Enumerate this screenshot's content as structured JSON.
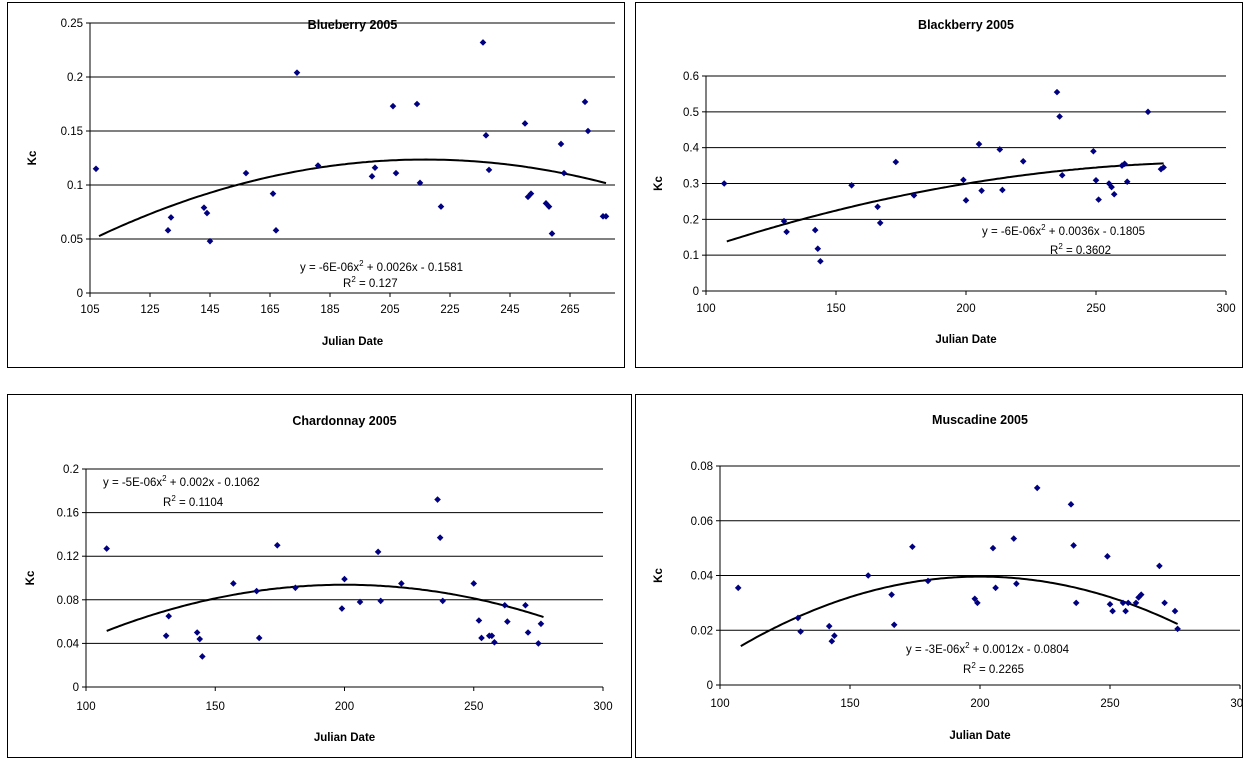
{
  "chart_data": [
    {
      "type": "scatter",
      "title": "Blueberry 2005",
      "xlabel": "Julian Date",
      "ylabel": "Kc",
      "xlim": [
        105,
        280
      ],
      "ylim": [
        0,
        0.25
      ],
      "xticks": [
        "105",
        "125",
        "145",
        "165",
        "185",
        "205",
        "225",
        "245",
        "265"
      ],
      "yticks": [
        "0",
        "0.05",
        "0.1",
        "0.15",
        "0.2",
        "0.25"
      ],
      "grid": "horizontal",
      "series": [
        {
          "x": [
            107,
            131,
            132,
            143,
            144,
            145,
            157,
            166,
            167,
            174,
            181,
            199,
            200,
            206,
            207,
            214,
            215,
            222,
            236,
            237,
            238,
            250,
            251,
            252,
            257,
            258,
            259,
            262,
            263,
            270,
            271,
            276,
            277
          ],
          "y": [
            0.115,
            0.058,
            0.07,
            0.079,
            0.074,
            0.048,
            0.111,
            0.092,
            0.058,
            0.204,
            0.118,
            0.108,
            0.116,
            0.173,
            0.111,
            0.175,
            0.102,
            0.08,
            0.232,
            0.146,
            0.114,
            0.157,
            0.089,
            0.092,
            0.083,
            0.08,
            0.055,
            0.138,
            0.111,
            0.177,
            0.15,
            0.071,
            0.071
          ]
        }
      ],
      "trendline": {
        "type": "poly2",
        "x_range": [
          108,
          277
        ]
      },
      "equation": "y = -6E-06x",
      "equation_sup": "2",
      "equation_rest": " + 0.0026x - 0.1581",
      "r2_label": "R",
      "r2_sup": "2",
      "r2_value": " = 0.127"
    },
    {
      "type": "scatter",
      "title": "Blackberry 2005",
      "xlabel": "Julian Date",
      "ylabel": "Kc",
      "xlim": [
        100,
        300
      ],
      "ylim": [
        0,
        0.6
      ],
      "xticks": [
        "100",
        "150",
        "200",
        "250",
        "300"
      ],
      "yticks": [
        "0",
        "0.1",
        "0.2",
        "0.3",
        "0.4",
        "0.5",
        "0.6"
      ],
      "grid": "horizontal",
      "series": [
        {
          "x": [
            107,
            130,
            131,
            142,
            143,
            144,
            156,
            166,
            167,
            173,
            180,
            199,
            200,
            205,
            206,
            213,
            214,
            222,
            235,
            236,
            237,
            249,
            250,
            251,
            255,
            256,
            257,
            260,
            261,
            262,
            270,
            275,
            276
          ],
          "y": [
            0.3,
            0.195,
            0.165,
            0.17,
            0.118,
            0.083,
            0.295,
            0.235,
            0.19,
            0.36,
            0.267,
            0.31,
            0.253,
            0.41,
            0.28,
            0.395,
            0.282,
            0.362,
            0.555,
            0.487,
            0.323,
            0.39,
            0.309,
            0.255,
            0.3,
            0.29,
            0.27,
            0.35,
            0.355,
            0.305,
            0.5,
            0.34,
            0.345
          ]
        }
      ],
      "trendline": {
        "type": "poly2",
        "x_range": [
          108,
          276
        ]
      },
      "equation": "y = -6E-06x",
      "equation_sup": "2",
      "equation_rest": " + 0.0036x - 0.1805",
      "r2_label": "R",
      "r2_sup": "2",
      "r2_value": " = 0.3602"
    },
    {
      "type": "scatter",
      "title": "Chardonnay 2005",
      "xlabel": "Julian Date",
      "ylabel": "Kc",
      "xlim": [
        100,
        300
      ],
      "ylim": [
        0,
        0.2
      ],
      "xticks": [
        "100",
        "150",
        "200",
        "250",
        "300"
      ],
      "yticks": [
        "0",
        "0.04",
        "0.08",
        "0.12",
        "0.16",
        "0.2"
      ],
      "grid": "horizontal",
      "series": [
        {
          "x": [
            108,
            131,
            132,
            143,
            144,
            145,
            157,
            166,
            167,
            174,
            181,
            199,
            200,
            206,
            213,
            214,
            222,
            236,
            237,
            238,
            250,
            252,
            253,
            256,
            257,
            258,
            262,
            263,
            270,
            271,
            275,
            276
          ],
          "y": [
            0.127,
            0.047,
            0.065,
            0.05,
            0.044,
            0.028,
            0.095,
            0.088,
            0.045,
            0.13,
            0.091,
            0.072,
            0.099,
            0.078,
            0.124,
            0.079,
            0.095,
            0.172,
            0.137,
            0.079,
            0.095,
            0.061,
            0.045,
            0.047,
            0.047,
            0.041,
            0.075,
            0.06,
            0.075,
            0.05,
            0.04,
            0.058
          ]
        }
      ],
      "trendline": {
        "type": "poly2",
        "x_range": [
          108,
          277
        ]
      },
      "equation": "y = -5E-06x",
      "equation_sup": "2",
      "equation_rest": " + 0.002x - 0.1062",
      "r2_label": "R",
      "r2_sup": "2",
      "r2_value": " = 0.1104"
    },
    {
      "type": "scatter",
      "title": "Muscadine 2005",
      "xlabel": "Julian Date",
      "ylabel": "Kc",
      "xlim": [
        100,
        300
      ],
      "ylim": [
        0,
        0.08
      ],
      "xticks": [
        "100",
        "150",
        "200",
        "250",
        "300"
      ],
      "yticks": [
        "0",
        "0.02",
        "0.04",
        "0.06",
        "0.08"
      ],
      "grid": "horizontal",
      "series": [
        {
          "x": [
            107,
            130,
            131,
            142,
            143,
            144,
            157,
            166,
            167,
            174,
            180,
            198,
            199,
            205,
            206,
            213,
            214,
            222,
            235,
            236,
            237,
            249,
            250,
            251,
            255,
            256,
            257,
            260,
            261,
            262,
            269,
            271,
            275,
            276
          ],
          "y": [
            0.0355,
            0.0245,
            0.0195,
            0.0215,
            0.016,
            0.018,
            0.04,
            0.033,
            0.022,
            0.0505,
            0.038,
            0.0315,
            0.03,
            0.05,
            0.0355,
            0.0535,
            0.037,
            0.072,
            0.066,
            0.051,
            0.03,
            0.047,
            0.0295,
            0.027,
            0.03,
            0.027,
            0.03,
            0.03,
            0.032,
            0.033,
            0.0435,
            0.03,
            0.027,
            0.0205
          ]
        }
      ],
      "trendline": {
        "type": "poly2",
        "x_range": [
          108,
          276
        ]
      },
      "equation": "y = -3E-06x",
      "equation_sup": "2",
      "equation_rest": " + 0.0012x - 0.0804",
      "r2_label": "R",
      "r2_sup": "2",
      "r2_value": " = 0.2265"
    }
  ],
  "colors": {
    "marker": "#000080",
    "trendline": "#000000",
    "gridline": "#000000",
    "background": "#ffffff"
  }
}
